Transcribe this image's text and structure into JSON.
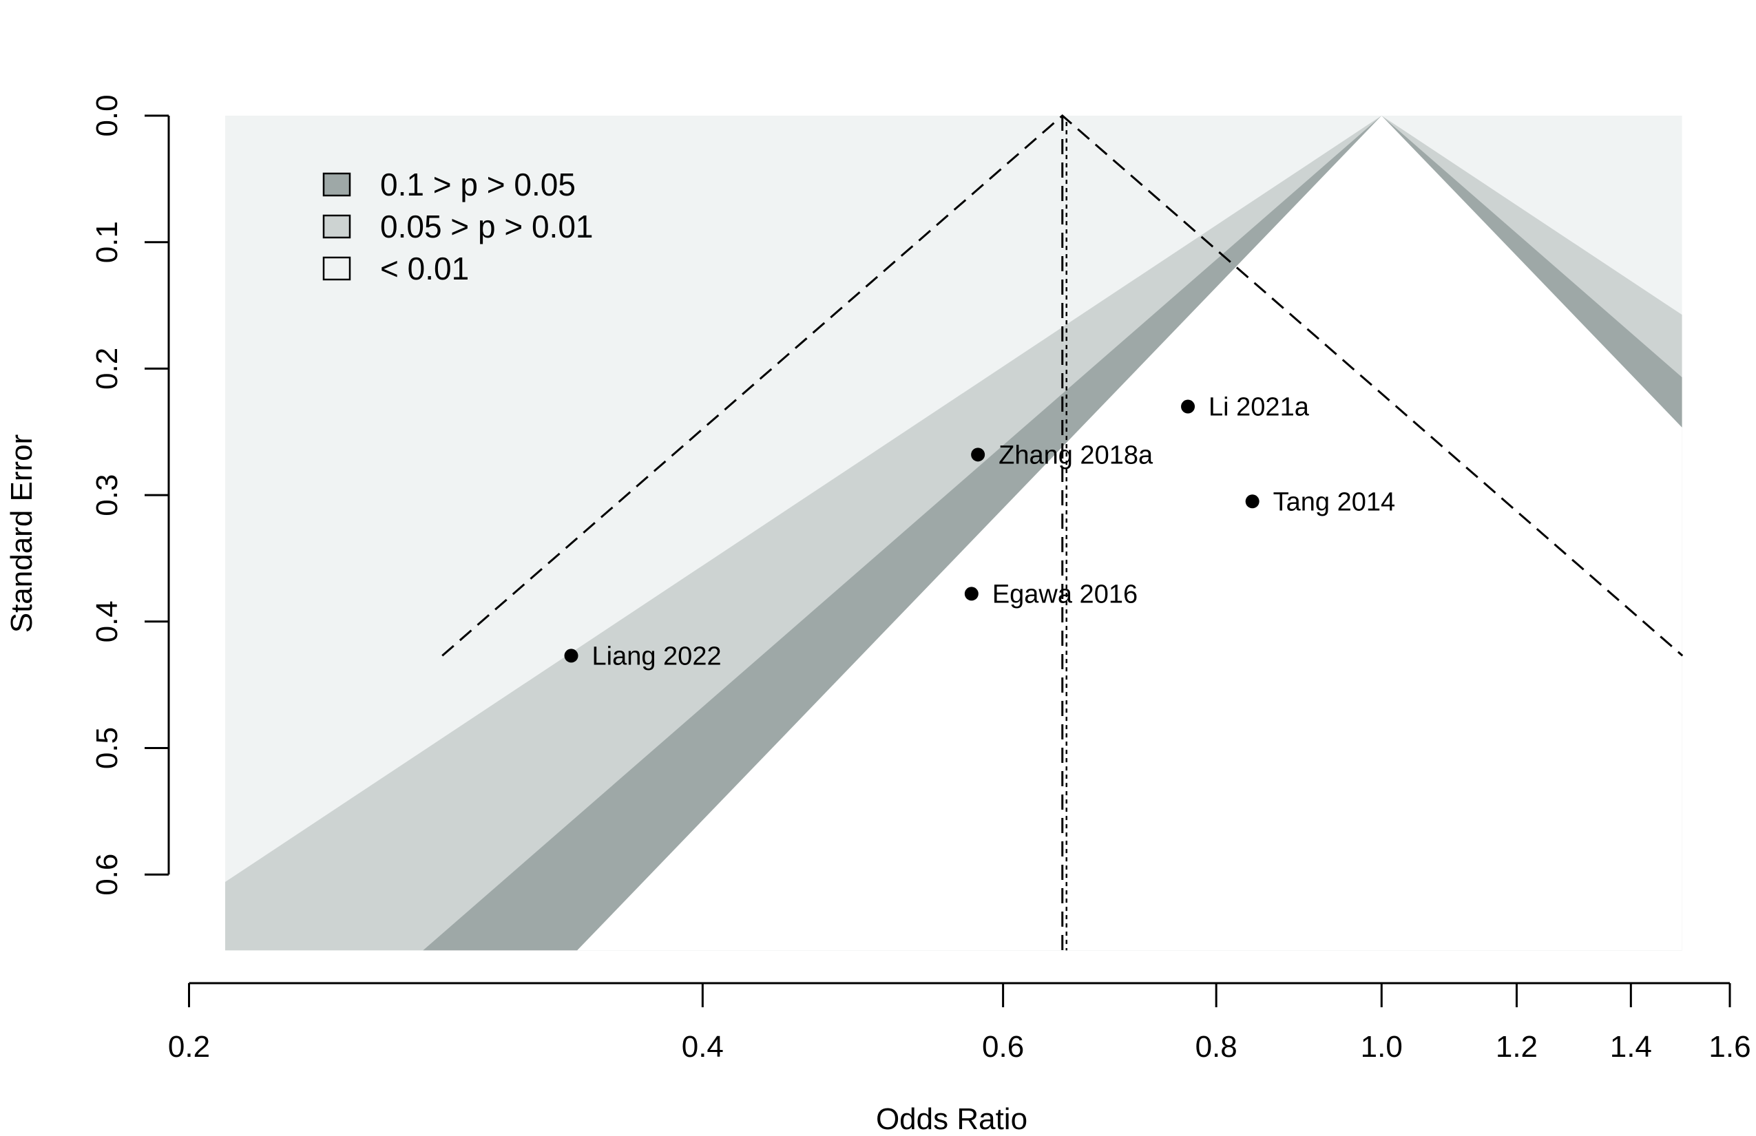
{
  "chart_data": {
    "type": "scatter",
    "subtype": "contour-enhanced funnel plot",
    "xlabel": "Odds Ratio",
    "ylabel": "Standard Error",
    "x_scale": "log",
    "x_ticks": [
      0.2,
      0.4,
      0.6,
      0.8,
      1.0,
      1.2,
      1.4,
      1.6
    ],
    "x_tick_labels": [
      "0.2",
      "0.4",
      "0.6",
      "0.8",
      "1.0",
      "1.2",
      "1.4",
      "1.6"
    ],
    "y_ticks": [
      0.0,
      0.1,
      0.2,
      0.3,
      0.4,
      0.5,
      0.6
    ],
    "y_tick_labels": [
      "0.0",
      "0.1",
      "0.2",
      "0.3",
      "0.4",
      "0.5",
      "0.6"
    ],
    "y_reversed": true,
    "xlim": [
      0.21,
      1.5
    ],
    "ylim": [
      0,
      0.66
    ],
    "grid": false,
    "legend_position": "top-left",
    "legend": [
      {
        "label": "0.1 > p > 0.05",
        "color": "#9ea8a7"
      },
      {
        "label": "0.05 > p > 0.01",
        "color": "#cdd3d2"
      },
      {
        "label": "< 0.01",
        "color": "#f0f3f3"
      }
    ],
    "contour_center_or": 1.0,
    "pooled_or": 0.65,
    "pooled_se_max": 0.427,
    "points": [
      {
        "label": "Li 2021a",
        "or": 0.77,
        "se": 0.23
      },
      {
        "label": "Zhang 2018a",
        "or": 0.58,
        "se": 0.268
      },
      {
        "label": "Tang 2014",
        "or": 0.84,
        "se": 0.305
      },
      {
        "label": "Egawa 2016",
        "or": 0.575,
        "se": 0.378
      },
      {
        "label": "Liang 2022",
        "or": 0.335,
        "se": 0.427
      }
    ],
    "colors": {
      "outer": "#f0f3f3",
      "p05": "#cdd3d2",
      "p10": "#9ea8a7",
      "inner": "#ffffff",
      "point": "#000000"
    }
  }
}
